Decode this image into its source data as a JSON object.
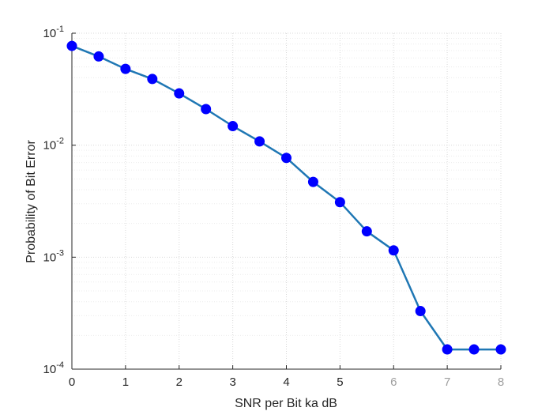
{
  "chart_data": {
    "type": "line",
    "title": "",
    "xlabel": "SNR per Bit ka dB",
    "ylabel": "Probability of Bit Error",
    "xlim": [
      0,
      8
    ],
    "ylim": [
      0.0001,
      0.1
    ],
    "y_scale": "log",
    "grid": true,
    "minor_grid": true,
    "x_ticks": [
      {
        "value": 0,
        "label": "0"
      },
      {
        "value": 1,
        "label": "1"
      },
      {
        "value": 2,
        "label": "2"
      },
      {
        "value": 3,
        "label": "3"
      },
      {
        "value": 4,
        "label": "4"
      },
      {
        "value": 5,
        "label": "5"
      },
      {
        "value": 6,
        "label": "6"
      },
      {
        "value": 7,
        "label": "7"
      },
      {
        "value": 8,
        "label": "8"
      }
    ],
    "y_ticks": [
      {
        "value": 0.1,
        "base": "10",
        "exp": "-1"
      },
      {
        "value": 0.01,
        "base": "10",
        "exp": "-2"
      },
      {
        "value": 0.001,
        "base": "10",
        "exp": "-3"
      },
      {
        "value": 0.0001,
        "base": "10",
        "exp": "-4"
      }
    ],
    "line_color": "#1f77b4",
    "marker_color": "#0000ff",
    "series": [
      {
        "x": [
          0,
          0.5,
          1,
          1.5,
          2,
          2.5,
          3,
          3.5,
          4,
          4.5,
          5,
          5.5,
          6,
          6.5,
          7,
          7.5,
          8
        ],
        "values": [
          0.077,
          0.062,
          0.048,
          0.039,
          0.029,
          0.021,
          0.0148,
          0.0108,
          0.0077,
          0.0047,
          0.0031,
          0.0017,
          0.00115,
          0.00033,
          0.00015,
          0.00015,
          0.00015
        ]
      }
    ]
  }
}
